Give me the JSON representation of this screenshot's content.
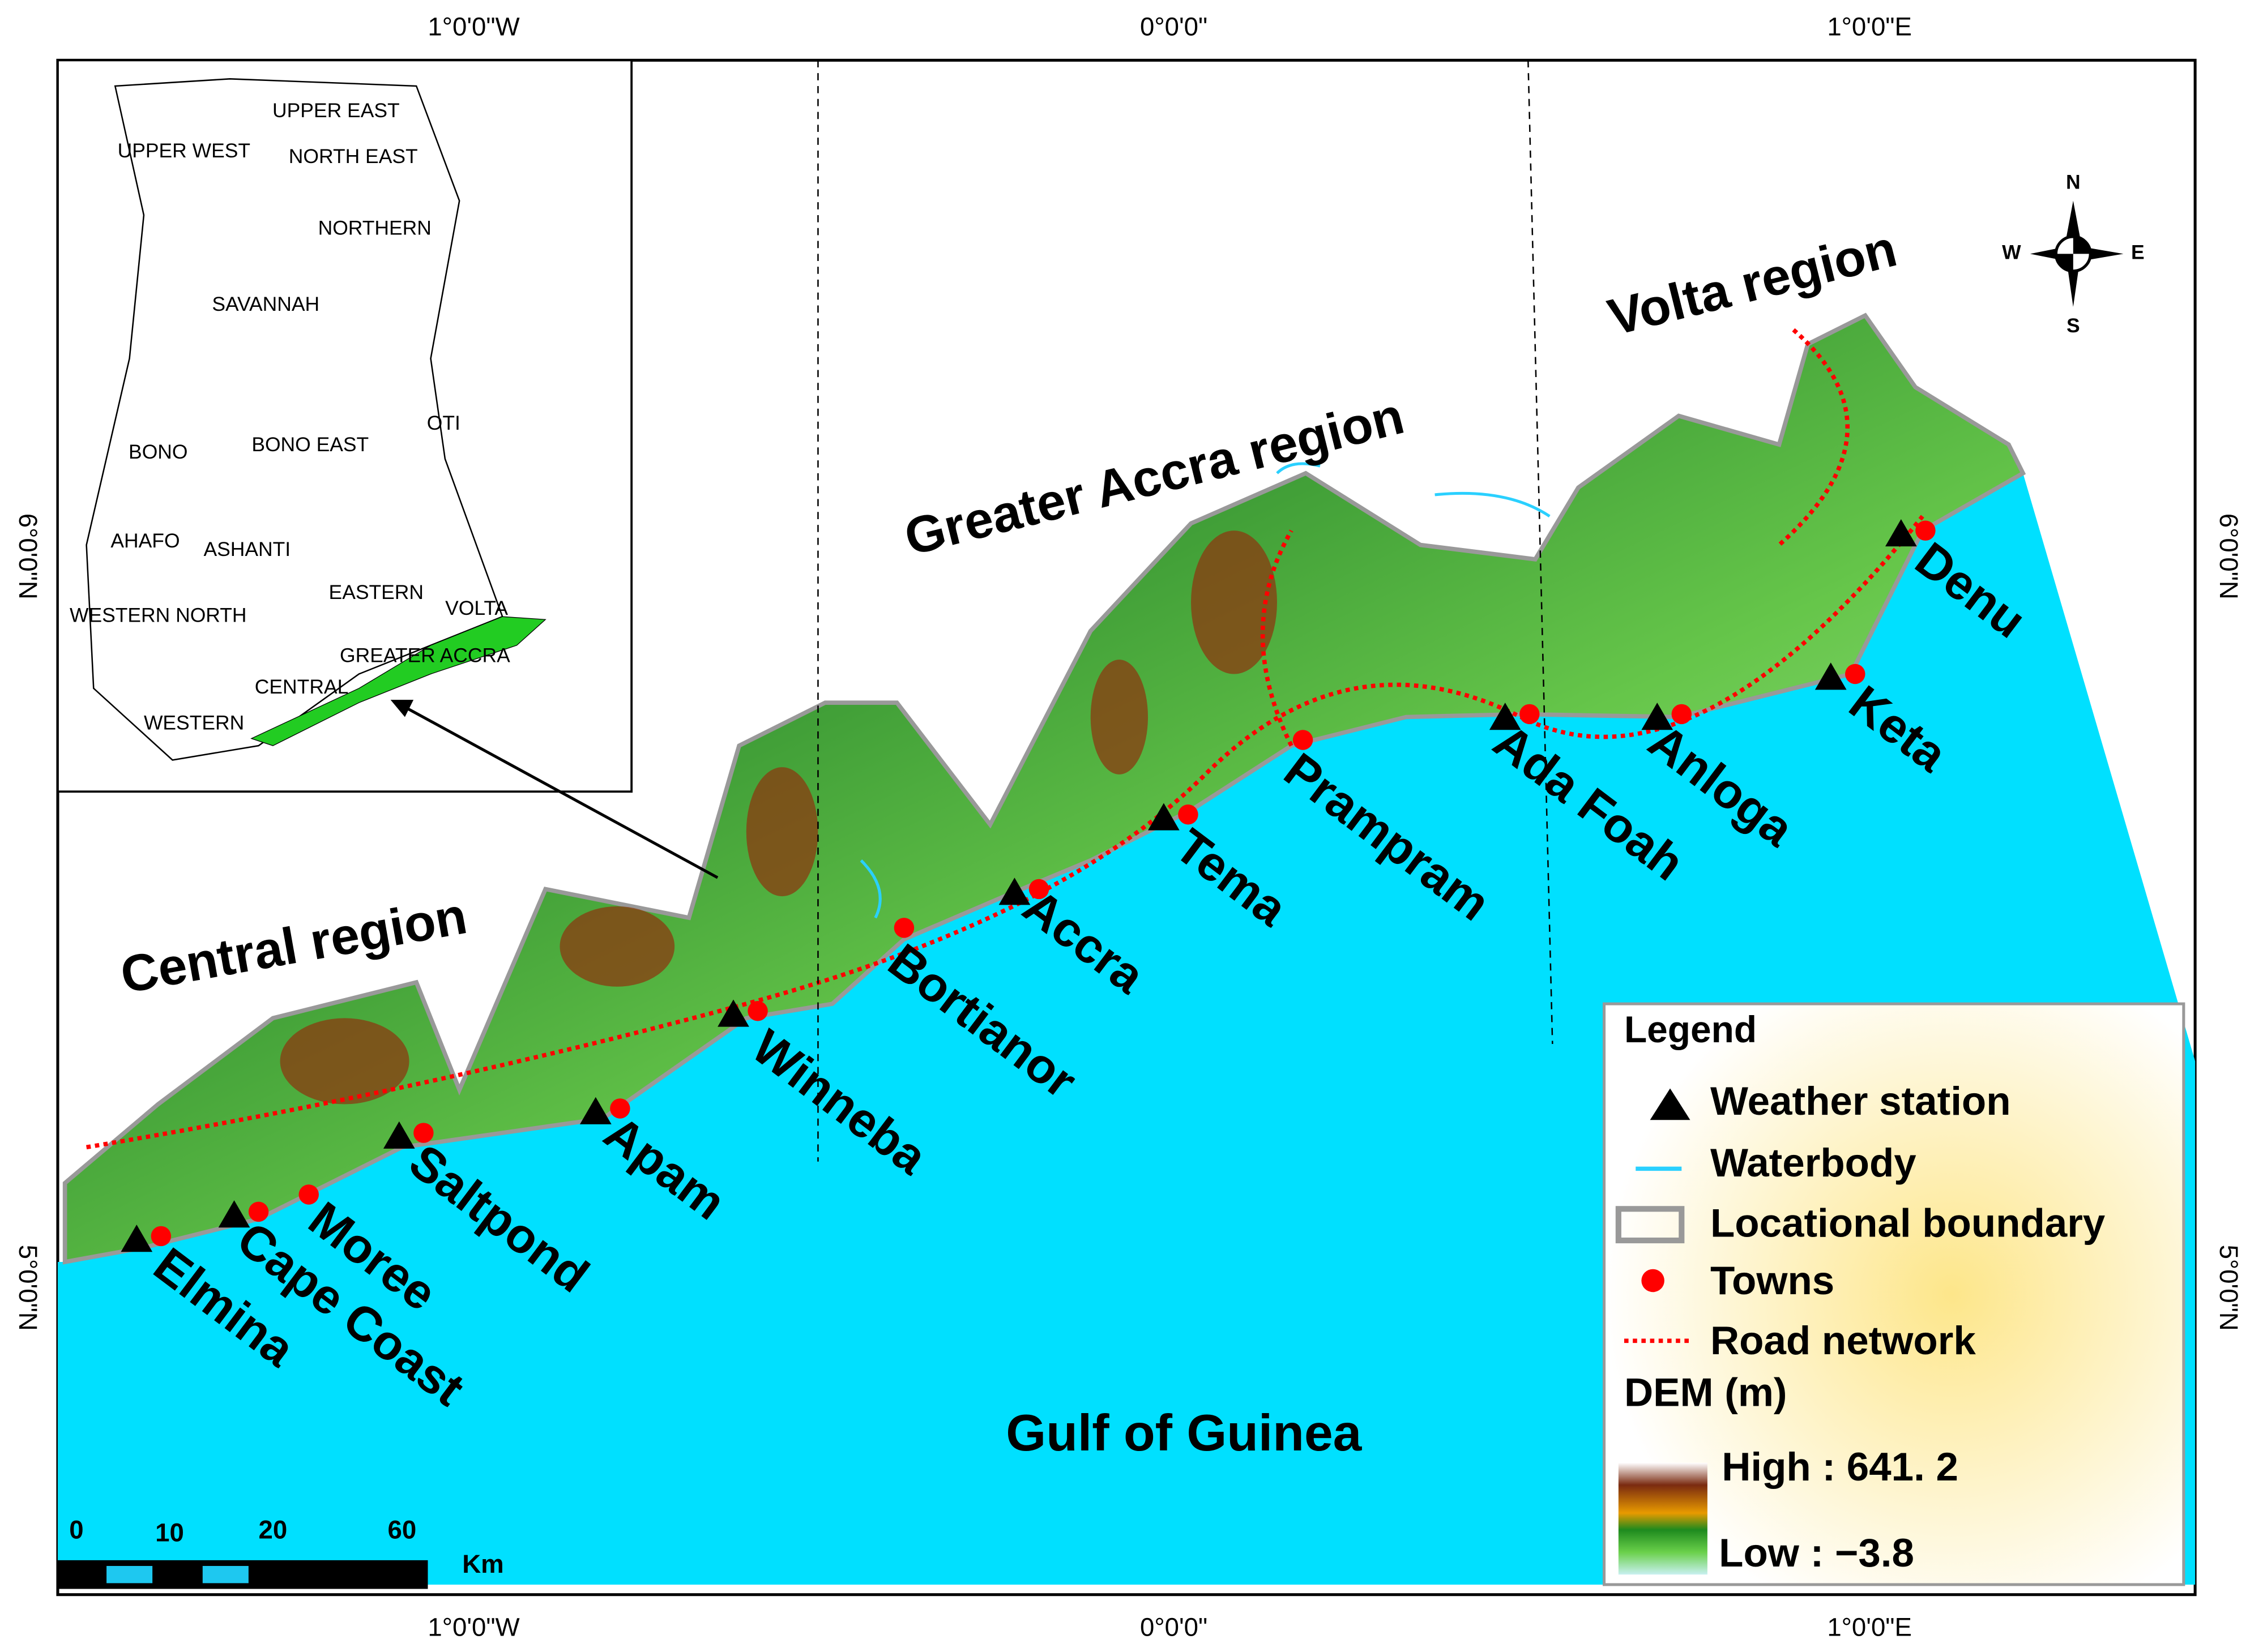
{
  "map": {
    "graticule": {
      "top": [
        "1°0'0\"W",
        "0°0'0\"",
        "1°0'0\"E"
      ],
      "bottom": [
        "1°0'0\"W",
        "0°0'0\"",
        "1°0'0\"E"
      ],
      "left": [
        "6°0'0\"N",
        "5°0'0\"N"
      ],
      "right": [
        "6°0'0\"N",
        "5°0'0\"N"
      ]
    },
    "regions": [
      "Central region",
      "Greater Accra region",
      "Volta region"
    ],
    "sea": "Gulf of Guinea",
    "towns": [
      "Elmina",
      "Cape Coast",
      "Moree",
      "Saltpond",
      "Apam",
      "Winneba",
      "Bortianor",
      "Accra",
      "Tema",
      "Prampram",
      "Ada Foah",
      "Anloga",
      "Keta",
      "Denu"
    ],
    "compass": [
      "N",
      "S",
      "W",
      "E"
    ],
    "scale": {
      "labels": [
        "0",
        "10",
        "20",
        "60"
      ],
      "unit": "Km"
    },
    "legend": {
      "title": "Legend",
      "items": [
        "Weather station",
        "Waterbody",
        "Locational boundary",
        "Towns",
        "Road network"
      ],
      "dem_title": "DEM (m)",
      "high": "High : 641. 2",
      "low": "Low : −3.8"
    },
    "inset": {
      "regions": [
        "UPPER EAST",
        "UPPER WEST",
        "NORTH EAST",
        "NORTHERN",
        "SAVANNAH",
        "BONO",
        "BONO EAST",
        "OTI",
        "AHAFO",
        "ASHANTI",
        "EASTERN",
        "VOLTA",
        "WESTERN NORTH",
        "GREATER ACCRA",
        "CENTRAL",
        "WESTERN"
      ]
    }
  }
}
